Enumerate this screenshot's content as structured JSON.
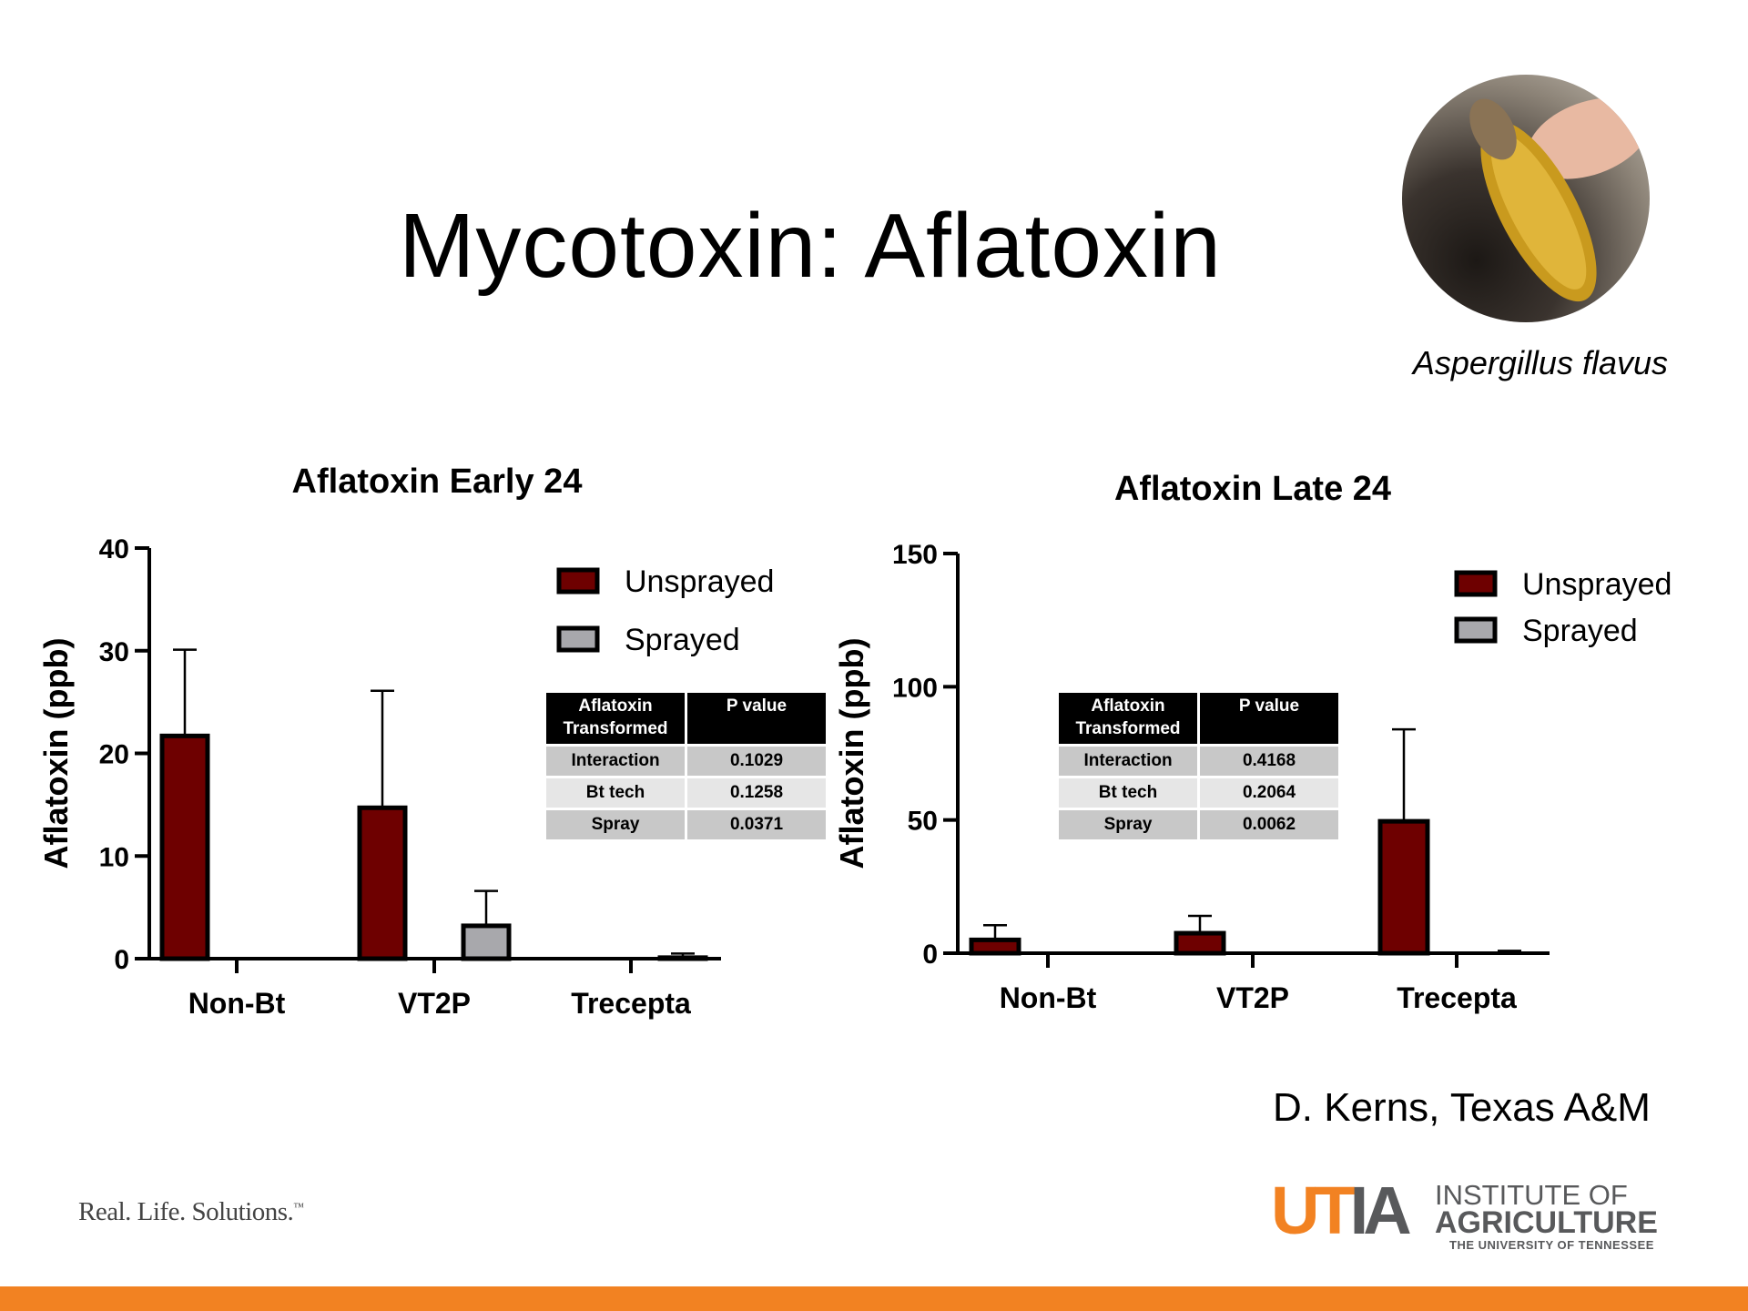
{
  "slide": {
    "title": "Mycotoxin: Aflatoxin",
    "photo_caption": "Aspergillus flavus",
    "credit": "D. Kerns, Texas A&M",
    "tagline": "Real. Life. Solutions.",
    "tagline_tm": "™",
    "logo": {
      "mark_u": "UT",
      "mark_ia": "IA",
      "line1": "INSTITUTE OF",
      "line2": "AGRICULTURE",
      "line3": "THE UNIVERSITY OF TENNESSEE"
    }
  },
  "colors": {
    "unsprayed": "#6e0000",
    "sprayed": "#a8a8ac",
    "accent": "#f28222"
  },
  "chart_data": [
    {
      "type": "bar",
      "title": "Aflatoxin Early 24",
      "xlabel": "",
      "ylabel": "Aflatoxin (ppb)",
      "ylim": [
        0,
        40
      ],
      "yticks": [
        0,
        10,
        20,
        30,
        40
      ],
      "categories": [
        "Non-Bt",
        "VT2P",
        "Trecepta"
      ],
      "series": [
        {
          "name": "Unsprayed",
          "values": [
            21.7,
            14.7,
            0
          ],
          "errors": [
            8.4,
            11.4,
            0
          ]
        },
        {
          "name": "Sprayed",
          "values": [
            0,
            3.2,
            0.1
          ],
          "errors": [
            0,
            3.4,
            0.4
          ]
        }
      ],
      "legend": "top-right",
      "stats_table": {
        "headers": [
          "Aflatoxin Transformed",
          "P value"
        ],
        "rows": [
          [
            "Interaction",
            "0.1029"
          ],
          [
            "Bt tech",
            "0.1258"
          ],
          [
            "Spray",
            "0.0371"
          ]
        ]
      }
    },
    {
      "type": "bar",
      "title": "Aflatoxin Late 24",
      "xlabel": "",
      "ylabel": "Aflatoxin (ppb)",
      "ylim": [
        0,
        150
      ],
      "yticks": [
        0,
        50,
        100,
        150
      ],
      "categories": [
        "Non-Bt",
        "VT2P",
        "Trecepta"
      ],
      "series": [
        {
          "name": "Unsprayed",
          "values": [
            5,
            7.5,
            49.5
          ],
          "errors": [
            5.5,
            6.5,
            34.5
          ]
        },
        {
          "name": "Sprayed",
          "values": [
            0,
            0,
            0.3
          ],
          "errors": [
            0,
            0,
            0.6
          ]
        }
      ],
      "legend": "top-right",
      "stats_table": {
        "headers": [
          "Aflatoxin Transformed",
          "P value"
        ],
        "rows": [
          [
            "Interaction",
            "0.4168"
          ],
          [
            "Bt tech",
            "0.2064"
          ],
          [
            "Spray",
            "0.0062"
          ]
        ]
      }
    }
  ]
}
